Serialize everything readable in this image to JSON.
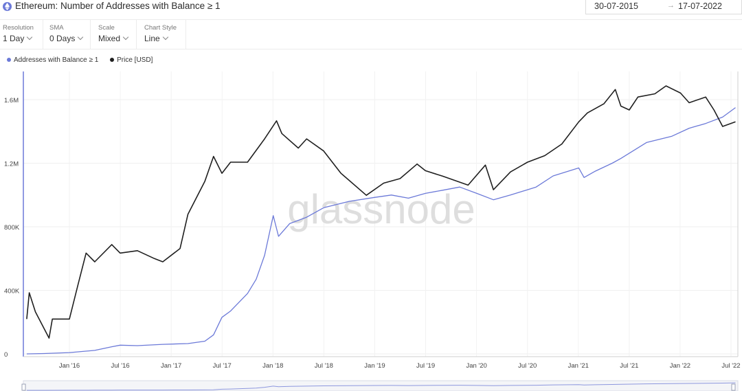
{
  "header": {
    "title": "Ethereum: Number of Addresses with Balance ≥ 1",
    "date_start": "30-07-2015",
    "date_arrow": "→",
    "date_end": "17-07-2022",
    "icon": "ethereum-icon"
  },
  "controls": [
    {
      "label": "Resolution",
      "value": "1 Day"
    },
    {
      "label": "SMA",
      "value": "0 Days"
    },
    {
      "label": "Scale",
      "value": "Mixed"
    },
    {
      "label": "Chart Style",
      "value": "Line"
    }
  ],
  "legend": [
    {
      "name": "Addresses with Balance ≥ 1",
      "color": "#6b79d8"
    },
    {
      "name": "Price [USD]",
      "color": "#1f1f1f"
    }
  ],
  "watermark": "glassnode",
  "chart_data": {
    "type": "line",
    "title": "Ethereum: Number of Addresses with Balance ≥ 1",
    "xlabel": "",
    "ylabel": "",
    "x_ticks": [
      "Jan '16",
      "Jul '16",
      "Jan '17",
      "Jul '17",
      "Jan '18",
      "Jul '18",
      "Jan '19",
      "Jul '19",
      "Jan '20",
      "Jul '20",
      "Jan '21",
      "Jul '21",
      "Jan '22",
      "Jul '22"
    ],
    "y_ticks": [
      "0",
      "400K",
      "800K",
      "1.2M",
      "1.6M"
    ],
    "ylim": [
      0,
      1700000
    ],
    "grid": true,
    "legend_position": "top-left",
    "series": [
      {
        "name": "Addresses with Balance ≥ 1",
        "color": "#6b79d8",
        "axis": "left",
        "points": [
          [
            "2015-08",
            0
          ],
          [
            "2015-10",
            2000
          ],
          [
            "2016-01",
            8000
          ],
          [
            "2016-04",
            22000
          ],
          [
            "2016-06",
            45000
          ],
          [
            "2016-07",
            55000
          ],
          [
            "2016-09",
            52000
          ],
          [
            "2016-12",
            60000
          ],
          [
            "2017-03",
            65000
          ],
          [
            "2017-05",
            80000
          ],
          [
            "2017-06",
            120000
          ],
          [
            "2017-07",
            230000
          ],
          [
            "2017-08",
            270000
          ],
          [
            "2017-10",
            380000
          ],
          [
            "2017-11",
            470000
          ],
          [
            "2017-12",
            620000
          ],
          [
            "2018-01",
            870000
          ],
          [
            "2018-01-20",
            740000
          ],
          [
            "2018-03",
            820000
          ],
          [
            "2018-05",
            860000
          ],
          [
            "2018-07",
            920000
          ],
          [
            "2018-10",
            960000
          ],
          [
            "2019-01",
            985000
          ],
          [
            "2019-03",
            1000000
          ],
          [
            "2019-05",
            980000
          ],
          [
            "2019-07",
            1010000
          ],
          [
            "2019-09",
            1030000
          ],
          [
            "2019-11",
            1050000
          ],
          [
            "2020-01",
            1010000
          ],
          [
            "2020-03",
            970000
          ],
          [
            "2020-05",
            1000000
          ],
          [
            "2020-08",
            1050000
          ],
          [
            "2020-10",
            1120000
          ],
          [
            "2021-01",
            1170000
          ],
          [
            "2021-01-20",
            1110000
          ],
          [
            "2021-03",
            1150000
          ],
          [
            "2021-05",
            1200000
          ],
          [
            "2021-06",
            1230000
          ],
          [
            "2021-09",
            1330000
          ],
          [
            "2021-12",
            1370000
          ],
          [
            "2022-02",
            1420000
          ],
          [
            "2022-04",
            1450000
          ],
          [
            "2022-06",
            1490000
          ],
          [
            "2022-07-17",
            1550000
          ]
        ]
      },
      {
        "name": "Price [USD]",
        "color": "#1f1f1f",
        "axis": "right",
        "points": [
          [
            "2015-08",
            1.0
          ],
          [
            "2015-08-10",
            2.6
          ],
          [
            "2015-09",
            1.3
          ],
          [
            "2015-10-20",
            0.5
          ],
          [
            "2015-11",
            1.0
          ],
          [
            "2016-01",
            1.0
          ],
          [
            "2016-02",
            3.5
          ],
          [
            "2016-03",
            11
          ],
          [
            "2016-04",
            8
          ],
          [
            "2016-06",
            15
          ],
          [
            "2016-07",
            11
          ],
          [
            "2016-09",
            12
          ],
          [
            "2016-11",
            9
          ],
          [
            "2016-12",
            8
          ],
          [
            "2017-02",
            13
          ],
          [
            "2017-03",
            45
          ],
          [
            "2017-05",
            150
          ],
          [
            "2017-06",
            370
          ],
          [
            "2017-07",
            200
          ],
          [
            "2017-08",
            300
          ],
          [
            "2017-10",
            300
          ],
          [
            "2017-12",
            700
          ],
          [
            "2018-01-13",
            1350
          ],
          [
            "2018-02",
            850
          ],
          [
            "2018-04",
            500
          ],
          [
            "2018-05",
            700
          ],
          [
            "2018-07",
            450
          ],
          [
            "2018-09",
            200
          ],
          [
            "2018-12",
            90
          ],
          [
            "2019-02",
            140
          ],
          [
            "2019-04",
            165
          ],
          [
            "2019-06",
            280
          ],
          [
            "2019-07",
            220
          ],
          [
            "2019-09",
            180
          ],
          [
            "2019-12",
            130
          ],
          [
            "2020-02",
            270
          ],
          [
            "2020-03",
            110
          ],
          [
            "2020-05",
            210
          ],
          [
            "2020-07",
            300
          ],
          [
            "2020-09",
            380
          ],
          [
            "2020-11",
            580
          ],
          [
            "2021-01",
            1300
          ],
          [
            "2021-02",
            1800
          ],
          [
            "2021-04",
            2500
          ],
          [
            "2021-05-12",
            4200
          ],
          [
            "2021-06",
            2300
          ],
          [
            "2021-07",
            2000
          ],
          [
            "2021-08",
            3200
          ],
          [
            "2021-10",
            3600
          ],
          [
            "2021-11-10",
            4800
          ],
          [
            "2022-01",
            3700
          ],
          [
            "2022-02",
            2600
          ],
          [
            "2022-04",
            3200
          ],
          [
            "2022-05",
            2000
          ],
          [
            "2022-06",
            1100
          ],
          [
            "2022-07-17",
            1300
          ]
        ]
      }
    ]
  }
}
